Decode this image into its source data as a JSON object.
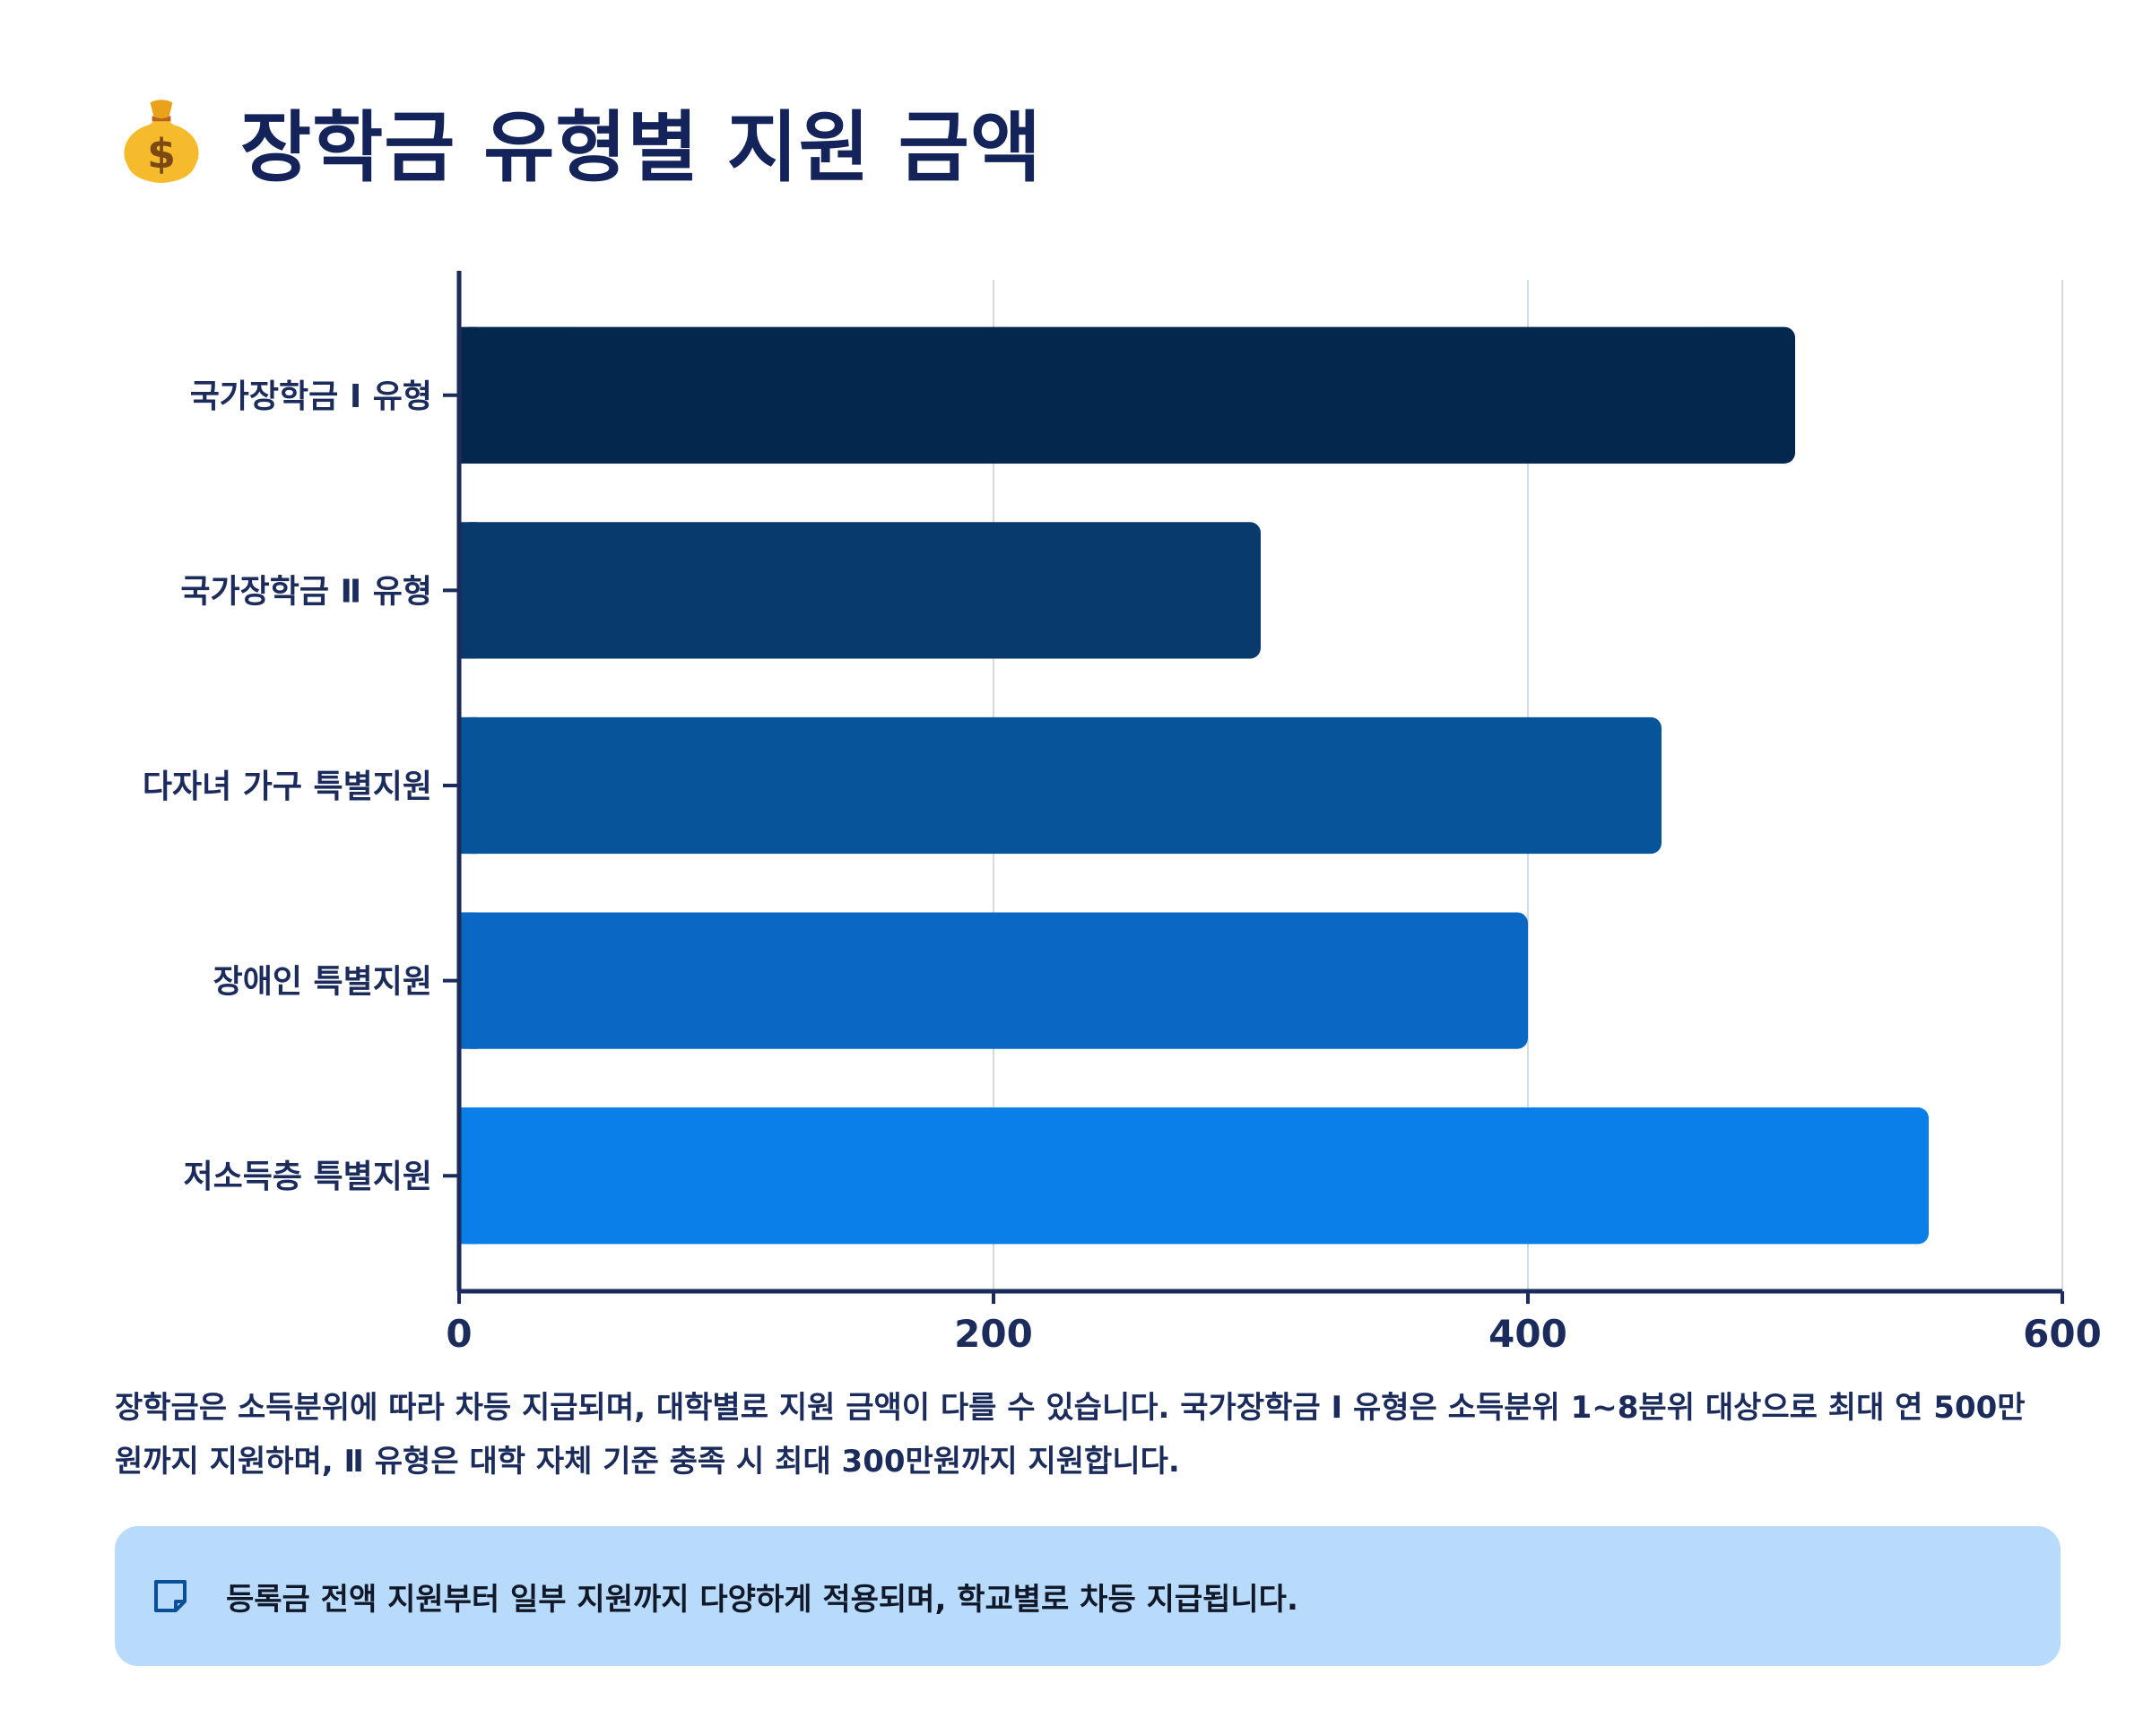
{
  "header": {
    "icon": "money-bag-icon",
    "title": "장학금 유형별 지원 금액"
  },
  "chart_data": {
    "type": "bar",
    "orientation": "horizontal",
    "title": "장학금 유형별 지원 금액",
    "xlabel": "",
    "ylabel": "",
    "categories": [
      "국가장학금 Ⅰ 유형",
      "국가장학금 Ⅱ 유형",
      "다자녀 가구 특별지원",
      "장애인 특별지원",
      "저소득층 특별지원"
    ],
    "values": [
      500,
      300,
      450,
      400,
      550
    ],
    "xlim": [
      0,
      600
    ],
    "x_ticks": [
      "0",
      "200",
      "400",
      "600"
    ],
    "grid": true,
    "bar_colors": [
      "#04284d",
      "#083a6e",
      "#08549a",
      "#0a68c4",
      "#0b7fe9"
    ]
  },
  "description": {
    "p1": "장학금은 소득분위에 따라 차등 지급되며, 대학별로 지원 금액이 다를 수 있습니다. 국가장학금 Ⅰ 유형은 소득분위 1~8분위 대상으로 최대 연 500만원까지 지원하며, Ⅱ 유형은 대학 자체 기준 충족 시 최대 300만원까지 지원합니다."
  },
  "note": {
    "icon": "sticky-note-icon",
    "text": "등록금 전액 지원부터 일부 지원까지 다양하게 적용되며, 학교별로 차등 지급됩니다."
  },
  "colors": {
    "accent": "#0b7fe9",
    "text": "#1a2b5c",
    "note_bg": "#b8dafb"
  }
}
